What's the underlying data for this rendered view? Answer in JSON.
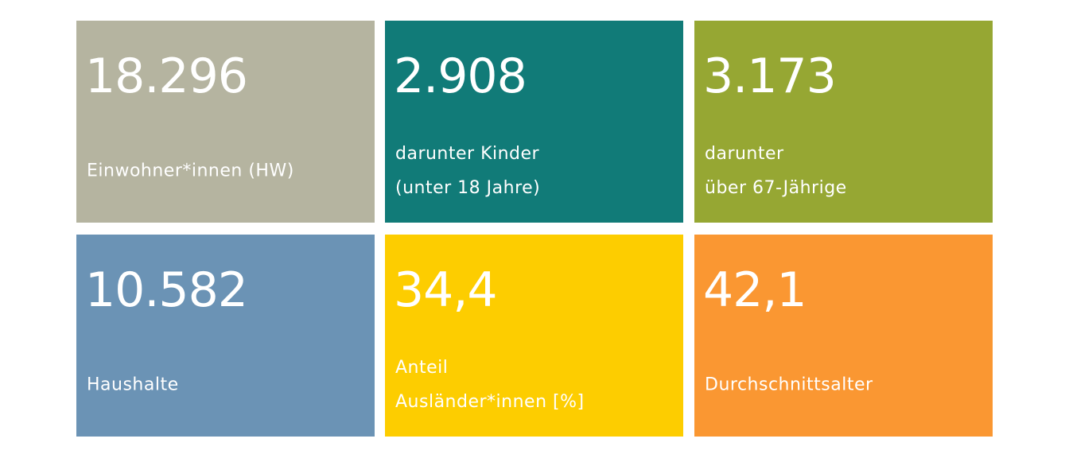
{
  "tiles": [
    {
      "value": "18.296",
      "label": [
        "Einwohner*innen (HW)"
      ],
      "color": "#b5b4a0"
    },
    {
      "value": "2.908",
      "label": [
        "darunter Kinder",
        "(unter 18 Jahre)"
      ],
      "color": "#117b78"
    },
    {
      "value": "3.173",
      "label": [
        "darunter",
        "über 67-Jährige"
      ],
      "color": "#96a733"
    },
    {
      "value": "10.582",
      "label": [
        "Haushalte"
      ],
      "color": "#6b93b5"
    },
    {
      "value": "34,4",
      "label": [
        "Anteil",
        "Ausländer*innen [%]"
      ],
      "color": "#fdcd00"
    },
    {
      "value": "42,1",
      "label": [
        "Durchschnittsalter"
      ],
      "color": "#fa9732"
    }
  ]
}
